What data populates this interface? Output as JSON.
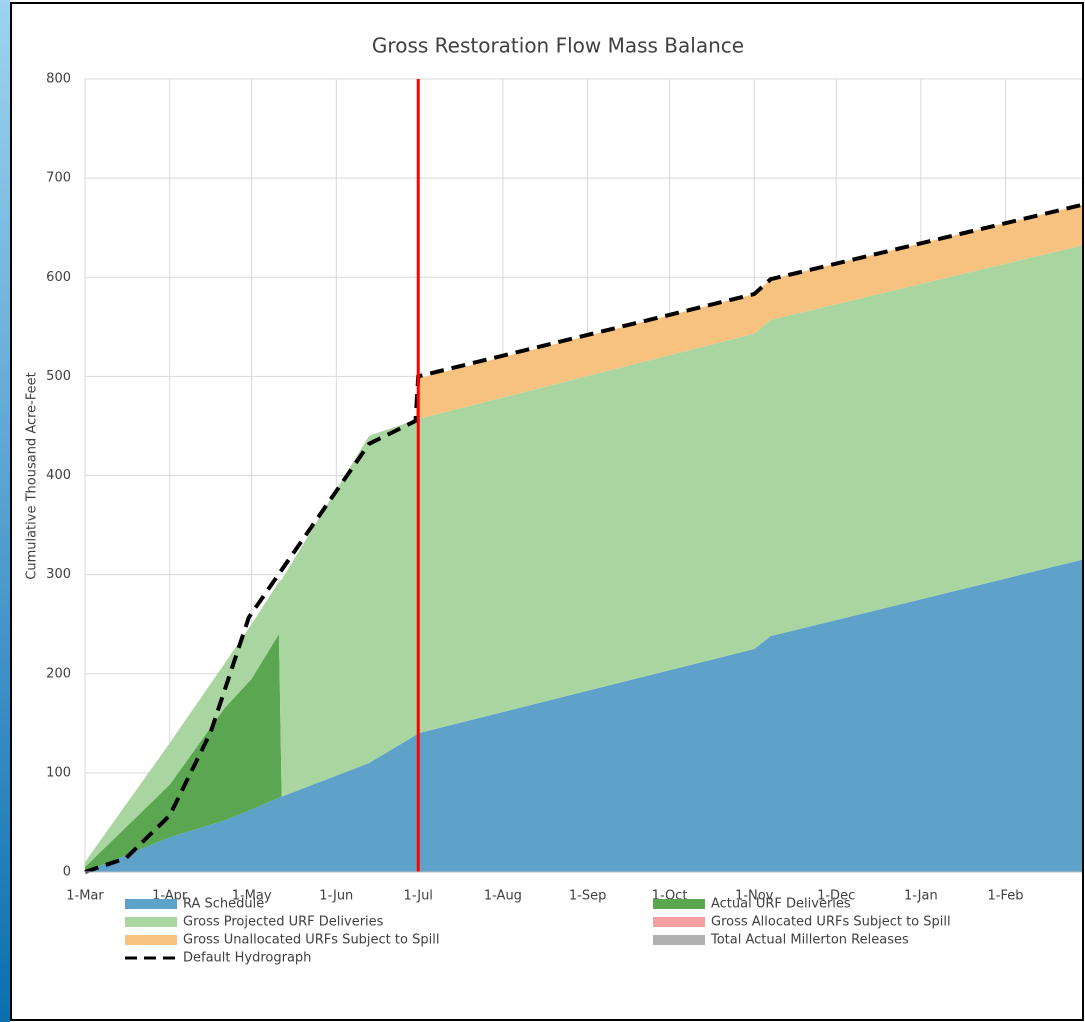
{
  "chart_data": {
    "type": "area",
    "title": "Gross Restoration Flow Mass Balance",
    "y_label": "Cumulative Thousand Acre-Feet",
    "stacked": true,
    "grid": true,
    "legend": "bottom",
    "x": [
      0,
      31,
      51,
      61,
      71,
      72,
      104,
      121,
      122,
      245,
      251,
      365
    ],
    "xlim": [
      0,
      365
    ],
    "xticks": [
      {
        "value": 0,
        "label": "1-Mar"
      },
      {
        "value": 31,
        "label": "1-Apr"
      },
      {
        "value": 61,
        "label": "1-May"
      },
      {
        "value": 92,
        "label": "1-Jun"
      },
      {
        "value": 122,
        "label": "1-Jul"
      },
      {
        "value": 153,
        "label": "1-Aug"
      },
      {
        "value": 184,
        "label": "1-Sep"
      },
      {
        "value": 214,
        "label": "1-Oct"
      },
      {
        "value": 245,
        "label": "1-Nov"
      },
      {
        "value": 275,
        "label": "1-Dec"
      },
      {
        "value": 306,
        "label": "1-Jan"
      },
      {
        "value": 337,
        "label": "1-Feb"
      }
    ],
    "ylim": [
      0,
      800
    ],
    "yticks": [
      0,
      100,
      200,
      300,
      400,
      500,
      600,
      700,
      800
    ],
    "marker_x": 122,
    "marker_color": "#ff0000",
    "series": [
      {
        "name": "RA Schedule",
        "color": "#5fa2c9",
        "values": [
          0,
          35,
          52,
          63,
          75,
          76,
          110,
          138,
          140,
          225,
          238,
          315
        ]
      },
      {
        "name": "Actual URF Deliveries",
        "color": "#5aa651",
        "values": [
          5,
          53,
          113,
          132,
          165,
          0,
          0,
          0,
          0,
          0,
          0,
          0
        ]
      },
      {
        "name": "Gross Projected URF Deliveries",
        "color": "#a8d5a0",
        "values": [
          5,
          42,
          45,
          55,
          53,
          219,
          330,
          318,
          317,
          318,
          319,
          317
        ]
      },
      {
        "name": "Gross Allocated URFs Subject to Spill",
        "color": "#f4a0a0",
        "values": [
          null,
          null,
          null,
          null,
          null,
          null,
          null,
          null,
          null,
          null,
          null,
          null
        ]
      },
      {
        "name": "Gross Unallocated URFs Subject to Spill",
        "color": "#f7c27f",
        "values": [
          0,
          0,
          0,
          0,
          0,
          0,
          0,
          0,
          41,
          40,
          41,
          41
        ]
      },
      {
        "name": "Total Actual Millerton Releases",
        "color": "#b0b0b0",
        "values": [
          null,
          null,
          null,
          null,
          null,
          null,
          null,
          null,
          null,
          null,
          null,
          null
        ]
      },
      {
        "name": "Default Hydrograph",
        "color": "#000000",
        "type": "line",
        "dashed": true,
        "x": [
          0,
          15,
          31,
          46,
          60,
          104,
          121,
          122,
          245,
          251,
          365
        ],
        "values": [
          0,
          14,
          57,
          141,
          257,
          432,
          455,
          500,
          583,
          598,
          673
        ]
      }
    ]
  }
}
